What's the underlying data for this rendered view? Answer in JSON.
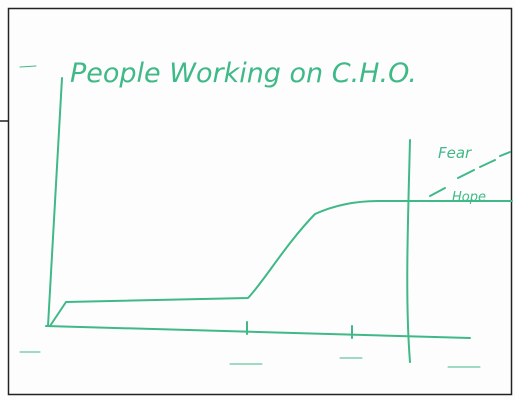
{
  "whiteboard": {
    "title": "People Working on C.H.O.",
    "annotations": [
      "Fear",
      "Hope"
    ]
  }
}
